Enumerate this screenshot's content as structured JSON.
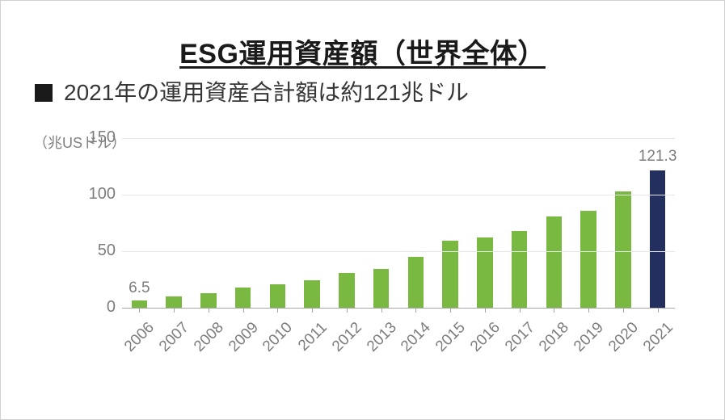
{
  "title": "ESG運用資産額（世界全体）",
  "bullet": "2021年の運用資産合計額は約121兆ドル",
  "y_axis_title": "（兆USドル）",
  "chart": {
    "type": "bar",
    "categories": [
      "2006",
      "2007",
      "2008",
      "2009",
      "2010",
      "2011",
      "2012",
      "2013",
      "2014",
      "2015",
      "2016",
      "2017",
      "2018",
      "2019",
      "2020",
      "2021"
    ],
    "values": [
      6.5,
      10,
      13,
      18,
      21,
      24,
      31,
      34,
      45,
      59,
      62,
      68,
      81,
      86,
      103,
      121.3
    ],
    "bar_colors": [
      "#79b942",
      "#79b942",
      "#79b942",
      "#79b942",
      "#79b942",
      "#79b942",
      "#79b942",
      "#79b942",
      "#79b942",
      "#79b942",
      "#79b942",
      "#79b942",
      "#79b942",
      "#79b942",
      "#79b942",
      "#232f5f"
    ],
    "ylim": [
      0,
      150
    ],
    "yticks": [
      0,
      50,
      100,
      150
    ],
    "background_color": "#ffffff",
    "axis_color": "#a6a6a6",
    "grid_color": "#e6e6e6",
    "tick_label_color": "#7d7d7d",
    "tick_label_fontsize": 19,
    "bar_width_ratio": 0.46,
    "first_value_label": "6.5",
    "last_value_label": "121.3",
    "value_label_color": "#7d7d7d",
    "title_fontsize": 34,
    "bullet_fontsize": 28
  }
}
